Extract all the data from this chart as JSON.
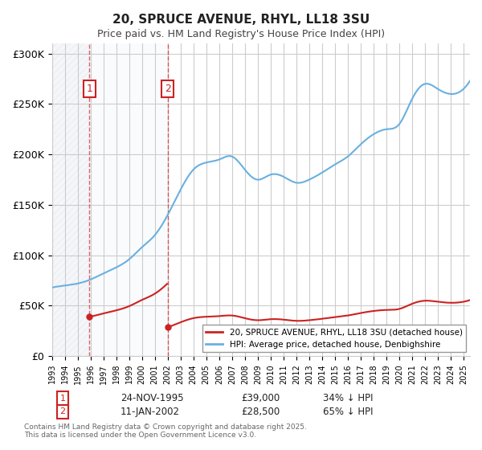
{
  "title": "20, SPRUCE AVENUE, RHYL, LL18 3SU",
  "subtitle": "Price paid vs. HM Land Registry's House Price Index (HPI)",
  "ylabel": "",
  "ylim": [
    0,
    310000
  ],
  "yticks": [
    0,
    50000,
    100000,
    150000,
    200000,
    250000,
    300000
  ],
  "ytick_labels": [
    "£0",
    "£50K",
    "£100K",
    "£150K",
    "£200K",
    "£250K",
    "£300K"
  ],
  "legend_line1": "20, SPRUCE AVENUE, RHYL, LL18 3SU (detached house)",
  "legend_line2": "HPI: Average price, detached house, Denbighshire",
  "sale1_date": "24-NOV-1995",
  "sale1_price": 39000,
  "sale1_label": "34% ↓ HPI",
  "sale2_date": "11-JAN-2002",
  "sale2_price": 28500,
  "sale2_label": "65% ↓ HPI",
  "footnote": "Contains HM Land Registry data © Crown copyright and database right 2025.\nThis data is licensed under the Open Government Licence v3.0.",
  "hpi_color": "#6ab0e0",
  "price_color": "#cc2222",
  "sale1_vline_color": "#cc2222",
  "sale2_vline_color": "#cc2222",
  "hatch_color": "#d0d8e8",
  "background_color": "#ffffff",
  "x_start_year": 1993,
  "x_end_year": 2025
}
